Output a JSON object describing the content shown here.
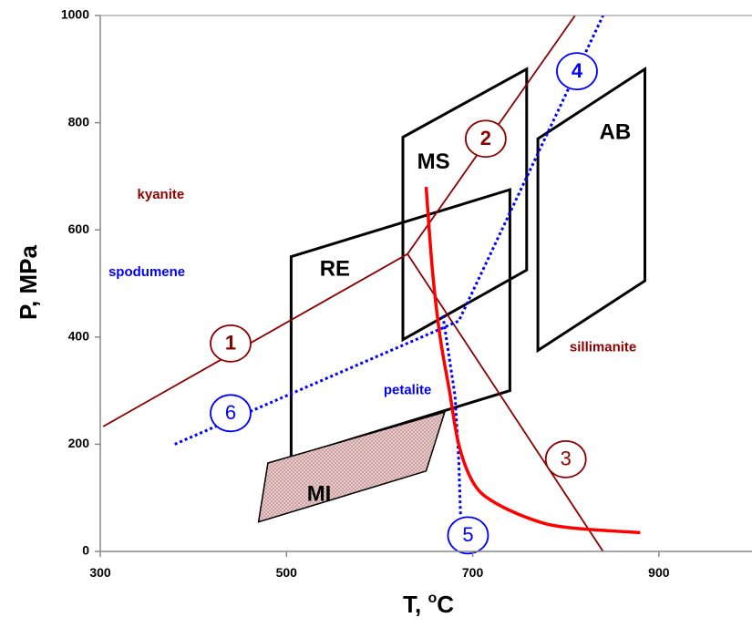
{
  "colors": {
    "aluminosilicate": "#8B0000",
    "lithium": "#0000FF",
    "solidus": "#FF0000",
    "regions": "#000000",
    "mi_fill": "#E7C9C9"
  },
  "chart_data": {
    "type": "line",
    "xlabel": "T, °C",
    "xlabel_main": "T, ",
    "xlabel_sup": "o",
    "xlabel_unit": "C",
    "ylabel": "P, MPa",
    "xlim": [
      300,
      1000
    ],
    "ylim": [
      0,
      1000
    ],
    "xticks": [
      300,
      500,
      700,
      900
    ],
    "yticks": [
      0,
      200,
      400,
      600,
      800,
      1000
    ],
    "grid": false,
    "series": [
      {
        "id": "s1",
        "kind": "solid",
        "color_key": "aluminosilicate",
        "points": [
          [
            303,
            233
          ],
          [
            630,
            555
          ],
          [
            810,
            1000
          ]
        ]
      },
      {
        "id": "s2",
        "kind": "solid",
        "color_key": "aluminosilicate",
        "points": [
          [
            630,
            555
          ],
          [
            840,
            0
          ]
        ]
      },
      {
        "id": "s3",
        "kind": "dotted",
        "color_key": "lithium",
        "points": [
          [
            380,
            200
          ],
          [
            685,
            430
          ],
          [
            840,
            1000
          ]
        ]
      },
      {
        "id": "s4",
        "kind": "dotted",
        "color_key": "lithium",
        "points": [
          [
            668,
            440
          ],
          [
            681,
            290
          ],
          [
            685,
            170
          ],
          [
            687,
            65
          ]
        ]
      },
      {
        "id": "s5",
        "kind": "curve",
        "color_key": "solidus",
        "points": [
          [
            650,
            680
          ],
          [
            657,
            520
          ],
          [
            665,
            400
          ],
          [
            675,
            300
          ],
          [
            685,
            200
          ],
          [
            700,
            130
          ],
          [
            720,
            95
          ],
          [
            760,
            62
          ],
          [
            800,
            45
          ],
          [
            880,
            35
          ]
        ]
      }
    ],
    "polygons": [
      {
        "id": "re",
        "label": "RE",
        "points": [
          [
            505,
            550
          ],
          [
            740,
            675
          ],
          [
            740,
            300
          ],
          [
            505,
            175
          ]
        ],
        "label_at": [
          552,
          525
        ]
      },
      {
        "id": "ms",
        "label": "MS",
        "points": [
          [
            625,
            773
          ],
          [
            758,
            900
          ],
          [
            758,
            525
          ],
          [
            625,
            395
          ]
        ],
        "label_at": [
          658,
          725
        ]
      },
      {
        "id": "ab",
        "label": "AB",
        "points": [
          [
            770,
            770
          ],
          [
            885,
            900
          ],
          [
            885,
            505
          ],
          [
            770,
            375
          ]
        ],
        "label_at": [
          853,
          780
        ]
      },
      {
        "id": "mi",
        "label": "MI",
        "filled": true,
        "points": [
          [
            480,
            165
          ],
          [
            670,
            260
          ],
          [
            650,
            150
          ],
          [
            470,
            55
          ]
        ],
        "label_at": [
          535,
          105
        ]
      }
    ],
    "curve_labels": [
      {
        "id": "c1",
        "label": "1",
        "color_key": "aluminosilicate",
        "bold": true,
        "at": [
          440,
          388
        ]
      },
      {
        "id": "c2",
        "label": "2",
        "color_key": "aluminosilicate",
        "bold": true,
        "at": [
          714,
          770
        ]
      },
      {
        "id": "c3",
        "label": "3",
        "color_key": "aluminosilicate",
        "bold": false,
        "at": [
          800,
          172
        ]
      },
      {
        "id": "c4",
        "label": "4",
        "color_key": "lithium",
        "bold": true,
        "at": [
          812,
          896
        ]
      },
      {
        "id": "c5",
        "label": "5",
        "color_key": "lithium",
        "bold": false,
        "at": [
          695,
          30
        ]
      },
      {
        "id": "c6",
        "label": "6",
        "color_key": "lithium",
        "bold": false,
        "at": [
          440,
          258
        ]
      }
    ],
    "field_labels": [
      {
        "id": "kyanite",
        "label": "kyanite",
        "color_key": "aluminosilicate",
        "at": [
          365,
          665
        ]
      },
      {
        "id": "spodumene",
        "label": "spodumene",
        "color_key": "lithium",
        "at": [
          350,
          520
        ]
      },
      {
        "id": "sillimanite",
        "label": "sillimanite",
        "color_key": "aluminosilicate",
        "at": [
          840,
          380
        ]
      },
      {
        "id": "petalite",
        "label": "petalite",
        "color_key": "lithium",
        "at": [
          630,
          300
        ]
      }
    ]
  }
}
